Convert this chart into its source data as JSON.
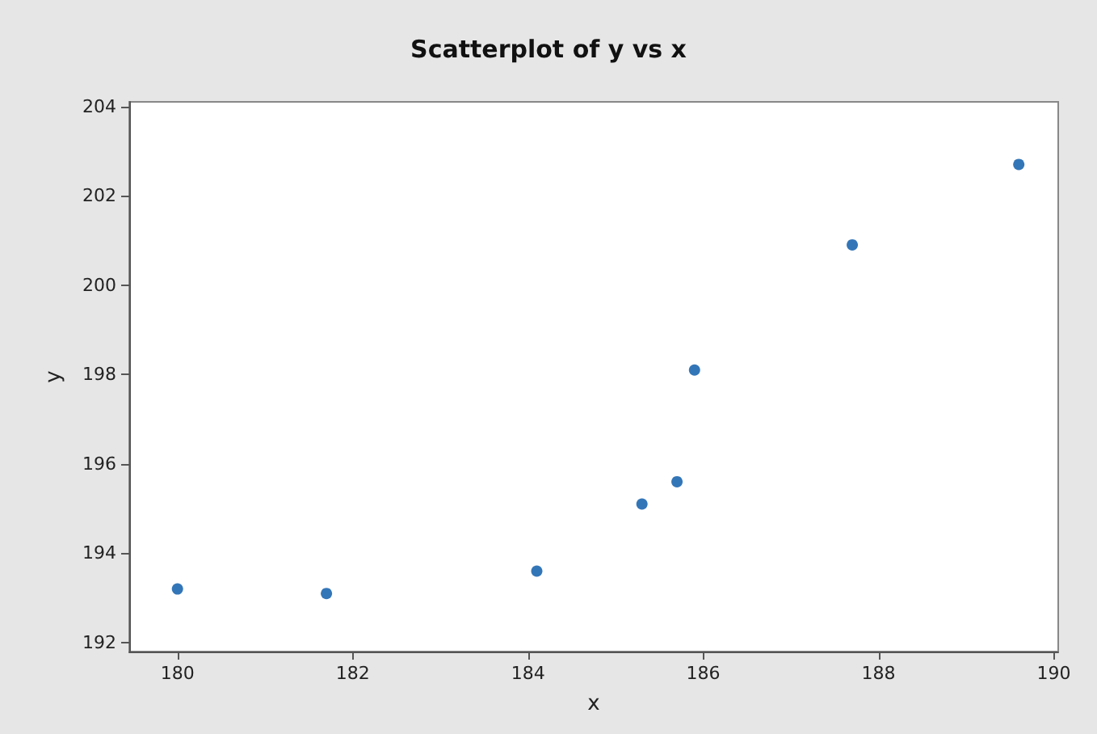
{
  "chart_data": {
    "type": "scatter",
    "title": "Scatterplot of y vs x",
    "xlabel": "x",
    "ylabel": "y",
    "x": [
      180.0,
      181.7,
      184.1,
      185.3,
      185.7,
      185.9,
      187.7,
      189.6
    ],
    "values": [
      193.2,
      193.1,
      193.6,
      195.1,
      195.6,
      198.1,
      200.9,
      202.7
    ],
    "color": "#0054a6",
    "marker": "circle",
    "xlim": [
      179.45,
      190.05
    ],
    "xticks": [
      180,
      182,
      184,
      186,
      188,
      190
    ],
    "ylim": [
      191.8,
      204.1
    ],
    "yticks": [
      192,
      194,
      196,
      198,
      200,
      202,
      204
    ],
    "grid": false
  }
}
